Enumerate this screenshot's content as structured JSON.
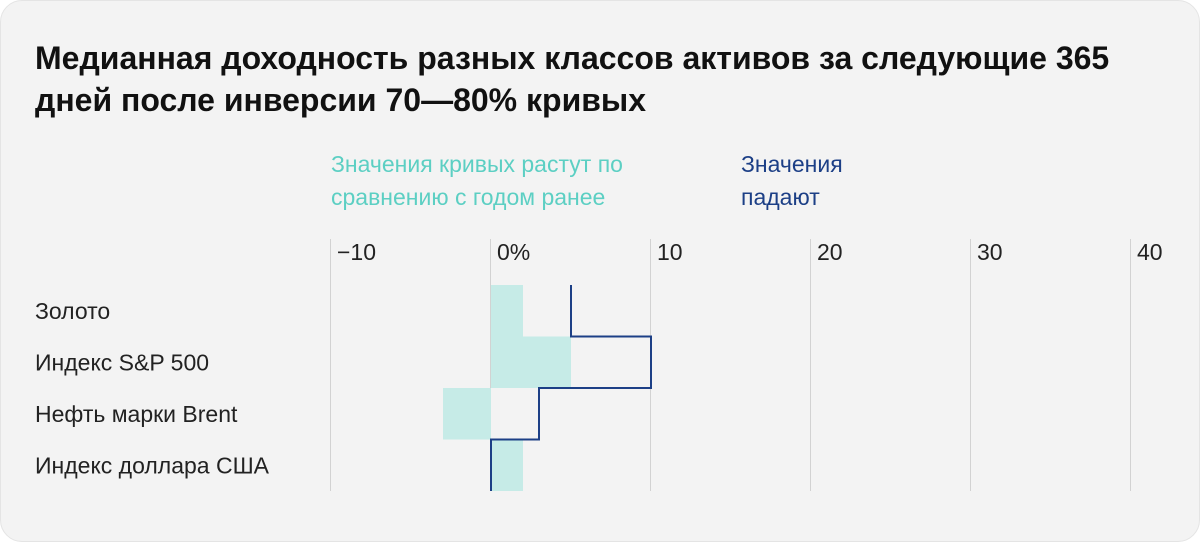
{
  "title": "Медианная доходность разных классов активов за следующие 365 дней после инверсии 70—80% кривых",
  "colors": {
    "rising": "#c6ebe7",
    "rising_text": "#5ccfc3",
    "falling": "#1c3f86",
    "grid": "#d2d2d2",
    "text": "#222222"
  },
  "chart_data": {
    "type": "bar",
    "title": "Медианная доходность разных классов активов за следующие 365 дней после инверсии 70—80% кривых",
    "categories": [
      "Золото",
      "Индекс S&P 500",
      "Нефть марки Brent",
      "Индекс доллара США"
    ],
    "x_ticks": [
      -10,
      0,
      10,
      20,
      30,
      40
    ],
    "x_tick_labels": [
      "−10",
      "0%",
      "10",
      "20",
      "30",
      "40"
    ],
    "xlim": [
      -10,
      40
    ],
    "grid": true,
    "legend": "top-left",
    "series": [
      {
        "name": "Значения кривых растут по сравнению с годом ранее",
        "style": "filled-bar",
        "values": [
          2,
          5,
          -3,
          2
        ]
      },
      {
        "name": "Значения падают",
        "style": "step-outline",
        "values": [
          5,
          10,
          3,
          0
        ]
      }
    ]
  }
}
